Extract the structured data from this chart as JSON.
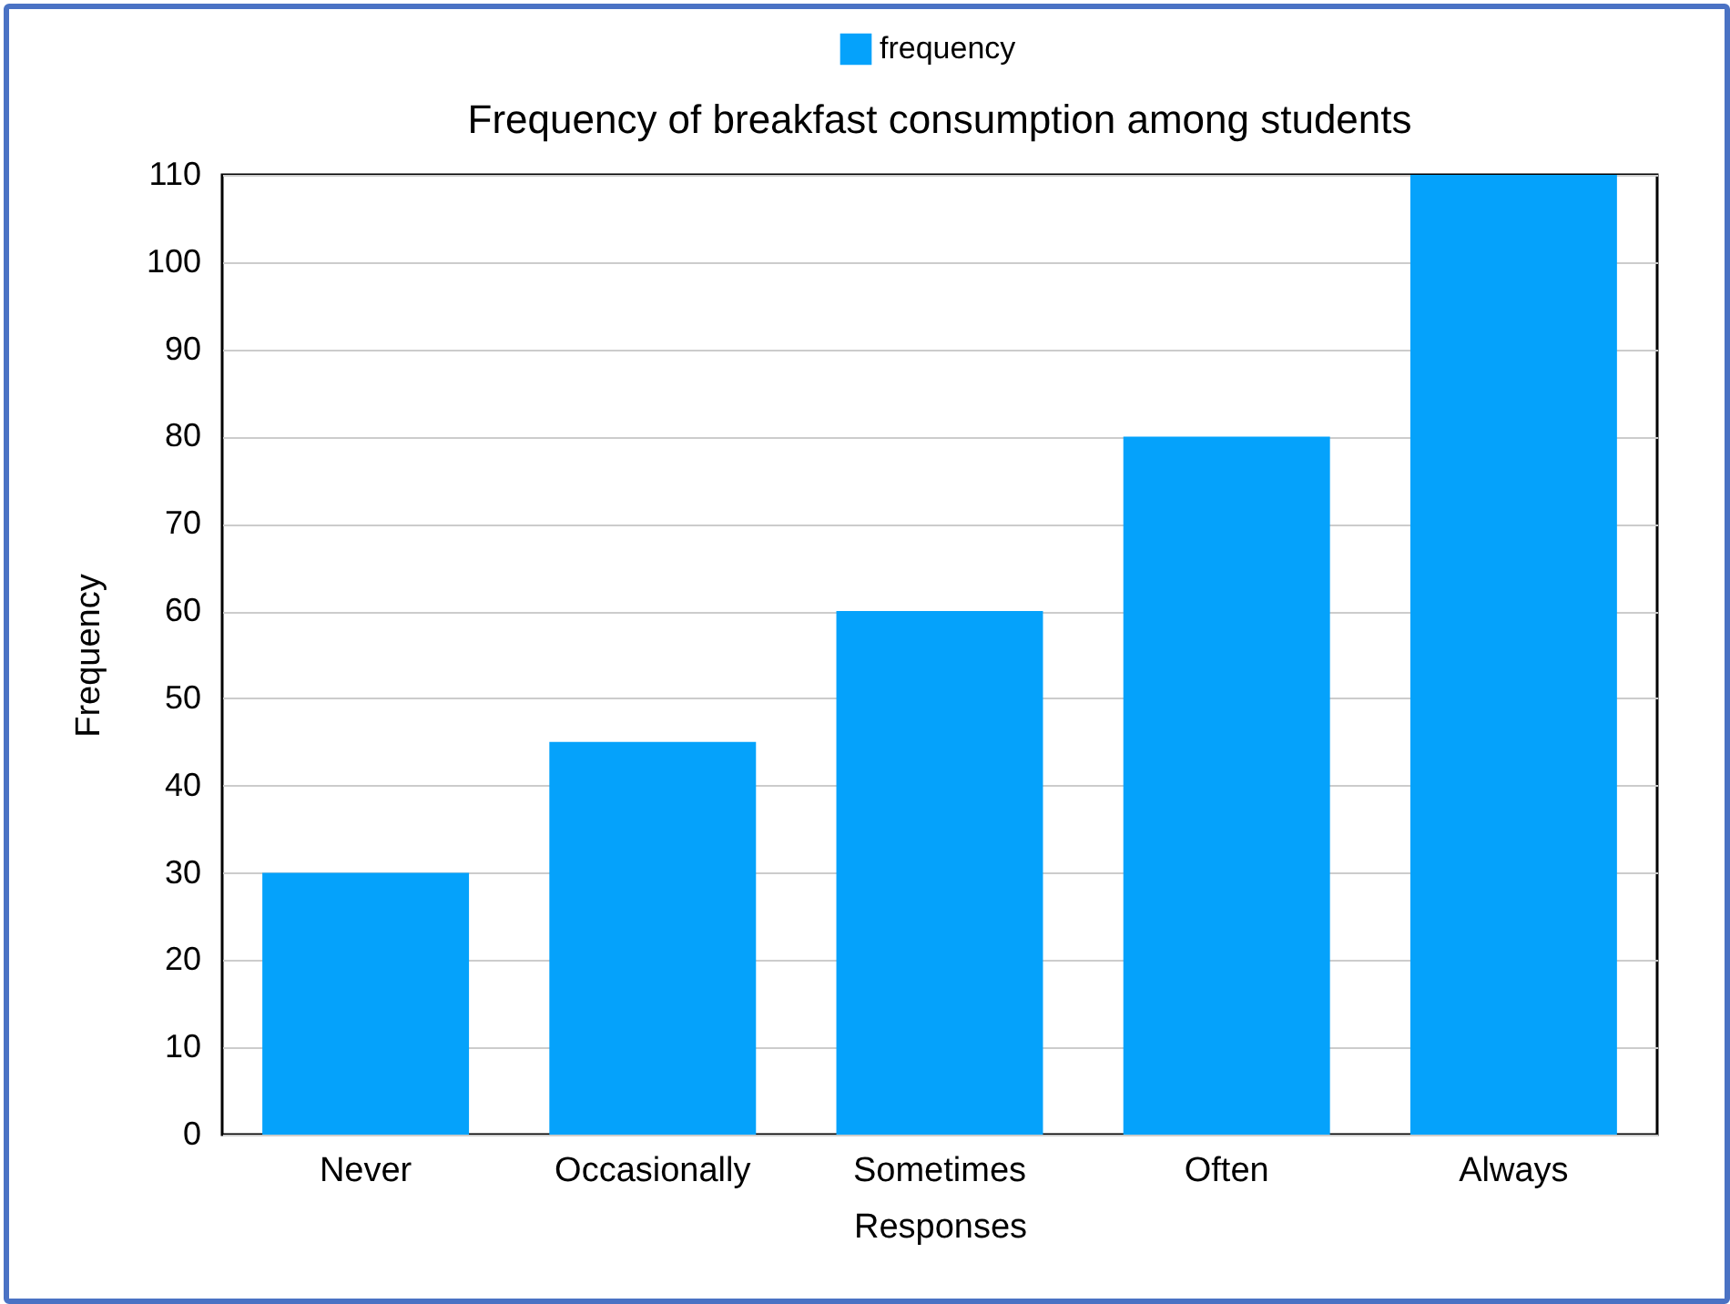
{
  "chart_data": {
    "type": "bar",
    "title": "Frequency of breakfast consumption among students",
    "xlabel": "Responses",
    "ylabel": "Frequency",
    "categories": [
      "Never",
      "Occasionally",
      "Sometimes",
      "Often",
      "Always"
    ],
    "series": [
      {
        "name": "frequency",
        "color": "#05a2fb",
        "values": [
          30,
          45,
          60,
          80,
          110
        ]
      }
    ],
    "ylim": [
      0,
      110
    ],
    "yticks": [
      0,
      10,
      20,
      30,
      40,
      50,
      60,
      70,
      80,
      90,
      100,
      110
    ],
    "grid": "y",
    "legend": "top"
  }
}
